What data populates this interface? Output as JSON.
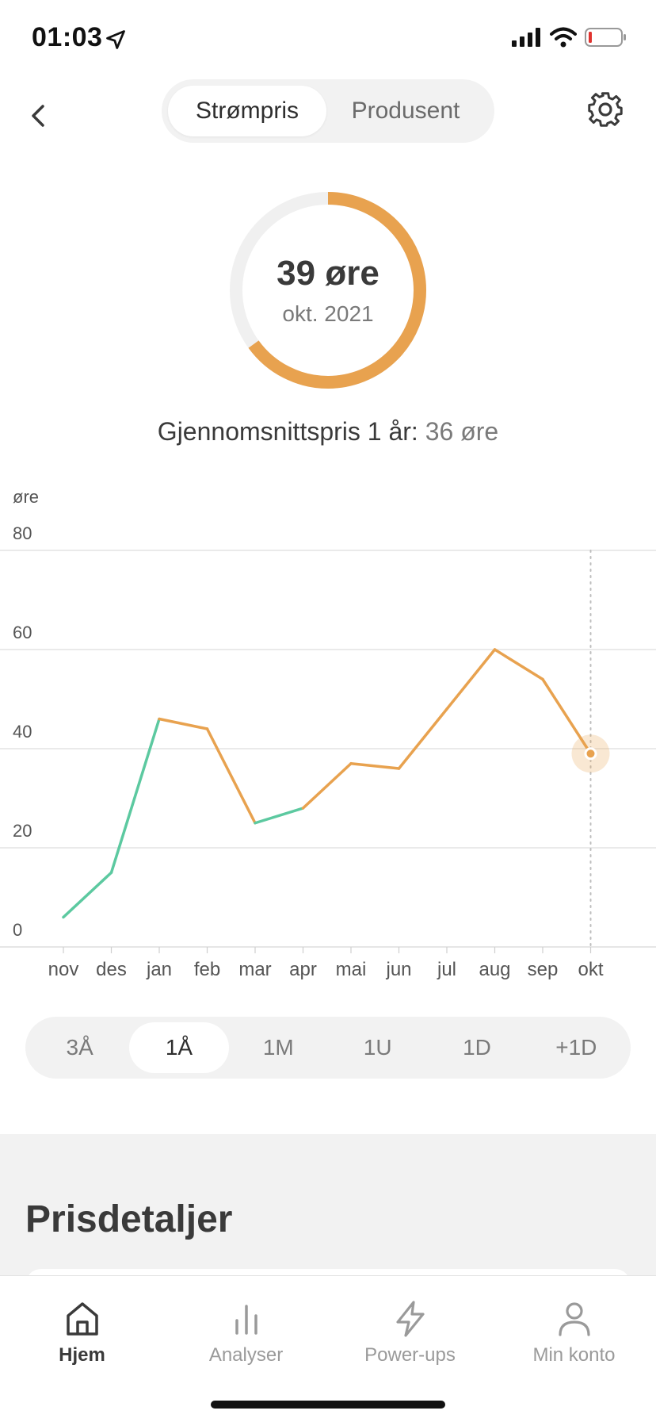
{
  "status_bar": {
    "time": "01:03",
    "icons": [
      "location-arrow-icon",
      "cellular-signal-icon",
      "wifi-icon",
      "battery-low-icon"
    ]
  },
  "header": {
    "back_icon": "chevron-left-icon",
    "segments": [
      {
        "label": "Strømpris",
        "active": true
      },
      {
        "label": "Produsent",
        "active": false
      }
    ],
    "settings_icon": "gear-icon"
  },
  "summary": {
    "value": "39 øre",
    "date": "okt. 2021",
    "ring_fraction": 0.65,
    "avg_label": "Gjennomsnittspris 1 år:",
    "avg_value": "36 øre"
  },
  "colors": {
    "accent_orange": "#e8a24f",
    "low_green": "#5cc9a0",
    "ring_track": "#f0f0f0",
    "grid": "#dddddd"
  },
  "chart_data": {
    "type": "line",
    "ylabel": "øre",
    "ylim": [
      0,
      80
    ],
    "yticks": [
      "0",
      "20",
      "40",
      "60",
      "80"
    ],
    "categories": [
      "nov",
      "des",
      "jan",
      "feb",
      "mar",
      "apr",
      "mai",
      "jun",
      "jul",
      "aug",
      "sep",
      "okt"
    ],
    "series": [
      {
        "values": [
          6,
          15,
          46,
          44,
          25,
          28,
          37,
          36,
          48,
          60,
          54,
          39
        ]
      }
    ],
    "selected_index": 11,
    "grid": true
  },
  "range": {
    "options": [
      {
        "label": "3Å",
        "active": false
      },
      {
        "label": "1Å",
        "active": true
      },
      {
        "label": "1M",
        "active": false
      },
      {
        "label": "1U",
        "active": false
      },
      {
        "label": "1D",
        "active": false
      },
      {
        "label": "+1D",
        "active": false
      }
    ]
  },
  "details": {
    "title": "Prisdetaljer"
  },
  "tabbar": {
    "tabs": [
      {
        "label": "Hjem",
        "icon": "home-icon",
        "active": true
      },
      {
        "label": "Analyser",
        "icon": "bar-chart-icon",
        "active": false
      },
      {
        "label": "Power-ups",
        "icon": "lightning-icon",
        "active": false
      },
      {
        "label": "Min konto",
        "icon": "person-icon",
        "active": false
      }
    ]
  }
}
